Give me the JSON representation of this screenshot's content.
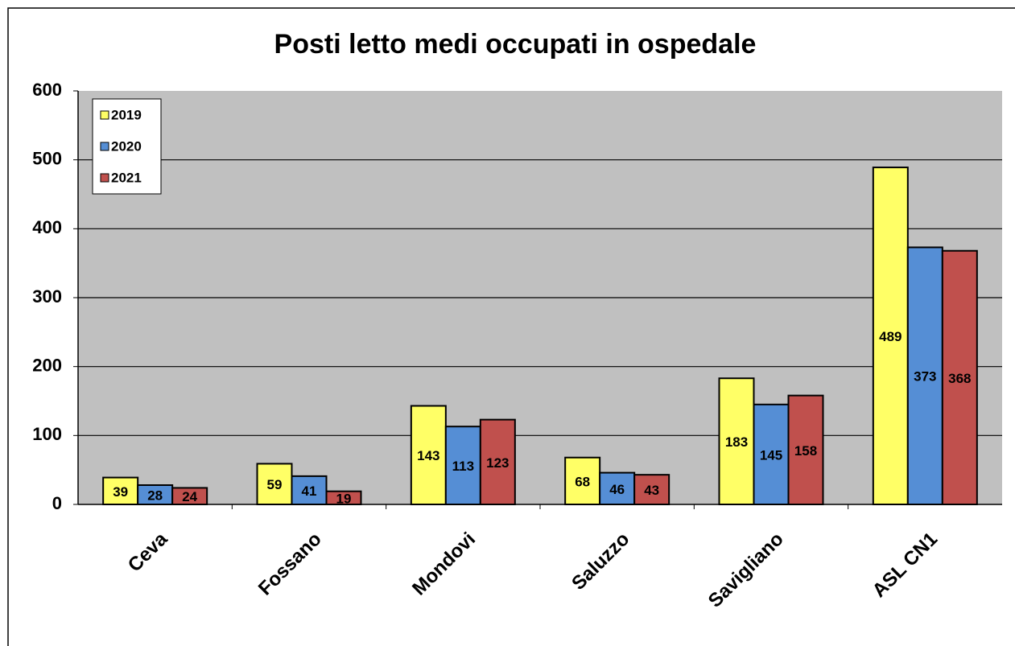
{
  "chart_data": {
    "type": "bar",
    "title": "Posti letto medi occupati in ospedale",
    "categories": [
      "Ceva",
      "Fossano",
      "Mondovi",
      "Saluzzo",
      "Savigliano",
      "ASL CN1"
    ],
    "series": [
      {
        "name": "2019",
        "color": "#ffff66",
        "values": [
          39,
          59,
          143,
          68,
          183,
          489
        ]
      },
      {
        "name": "2020",
        "color": "#558ed5",
        "values": [
          28,
          41,
          113,
          46,
          145,
          373
        ]
      },
      {
        "name": "2021",
        "color": "#c0504d",
        "values": [
          24,
          19,
          123,
          43,
          158,
          368
        ]
      }
    ],
    "ylim": [
      0,
      600
    ],
    "yticks": [
      0,
      100,
      200,
      300,
      400,
      500,
      600
    ],
    "grid": true,
    "legend": "upper left"
  }
}
